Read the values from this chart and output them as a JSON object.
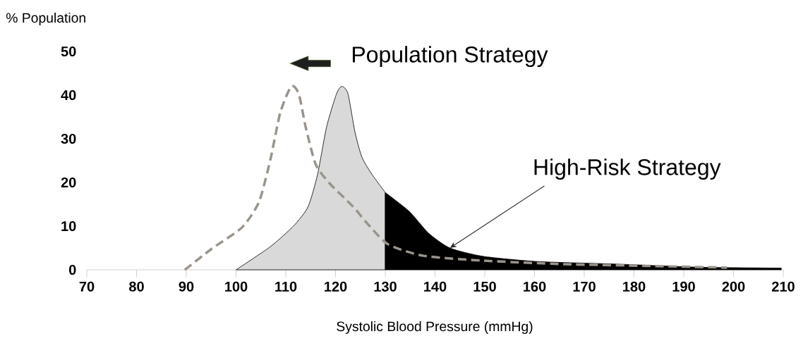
{
  "chart_data": {
    "type": "area",
    "xlabel": "Systolic Blood Pressure (mmHg)",
    "ylabel": "% Population",
    "annotations": [
      "Population Strategy",
      {
        "text": "High-Risk Strategy",
        "x": 143,
        "y": 5
      }
    ],
    "xlim": [
      70,
      210
    ],
    "xticks": [
      70,
      80,
      90,
      100,
      110,
      120,
      130,
      140,
      150,
      160,
      170,
      180,
      190,
      200,
      210
    ],
    "ylim": [
      0,
      50
    ],
    "yticks": [
      0,
      10,
      20,
      30,
      40,
      50
    ],
    "grid": false,
    "series": [
      {
        "color": "#d9d9d9",
        "x": [
          100,
          106.9,
          111.7,
          114.5,
          116.4,
          118.2,
          120.2,
          121.3,
          122.5,
          123.9,
          125.3,
          127.3,
          130
        ],
        "values": [
          0,
          5.3,
          10.2,
          14.5,
          21.9,
          32.7,
          40.3,
          42,
          40.3,
          31.6,
          25.8,
          21.9,
          17.7
        ]
      },
      {
        "color": "#000000",
        "x": [
          130,
          134.8,
          138.7,
          143,
          149.6,
          160.5,
          176.8,
          193.2,
          209.6
        ],
        "values": [
          17.7,
          13.4,
          8.4,
          5,
          3.1,
          1.9,
          1.3,
          0.6,
          0.4
        ]
      },
      {
        "type": "line",
        "color": "#9a948b",
        "line_style": "dashed",
        "x": [
          89.7,
          95.1,
          101.2,
          104.6,
          106.9,
          108.9,
          111.1,
          112.6,
          114,
          116,
          118.8,
          123.5,
          126.7,
          130.6,
          137.7,
          149.6,
          165.9,
          182.3,
          198.7
        ],
        "values": [
          0,
          4.8,
          9.7,
          15.5,
          25.2,
          36,
          42,
          40.3,
          32.7,
          24.2,
          19.8,
          14.5,
          10.2,
          5.8,
          3.2,
          2.1,
          1.3,
          0.9,
          0.5
        ]
      }
    ]
  }
}
